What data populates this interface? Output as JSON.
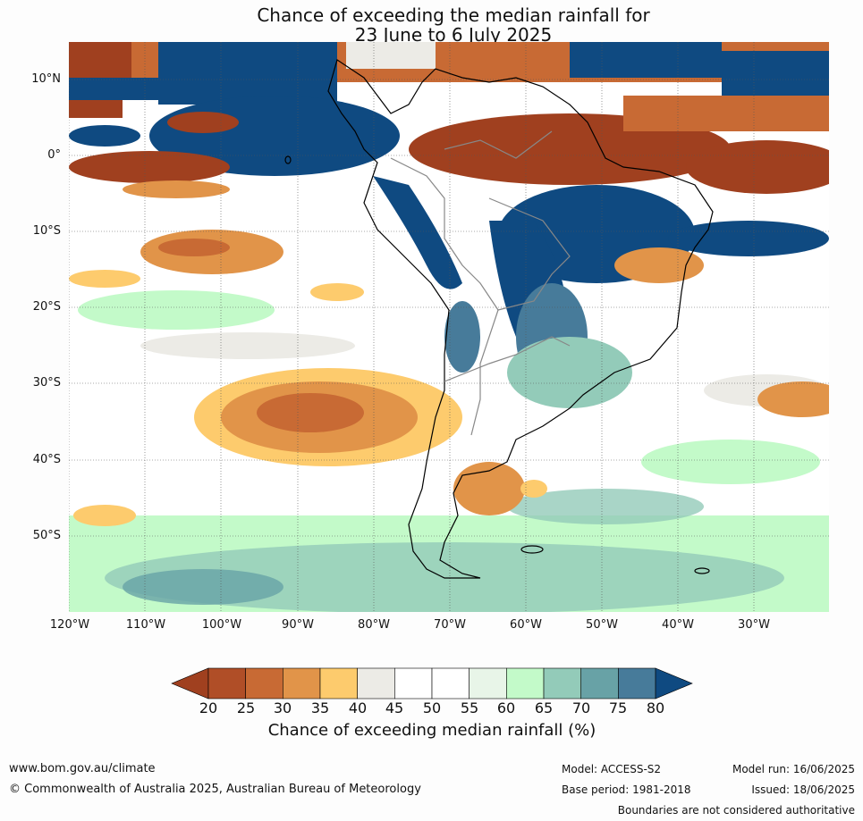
{
  "title": {
    "line1": "Chance of exceeding the median rainfall for",
    "line2": "23 June to 6 July 2025"
  },
  "map": {
    "lat_labels": [
      "10°N",
      "0°",
      "10°S",
      "20°S",
      "30°S",
      "40°S",
      "50°S"
    ],
    "lon_labels": [
      "120°W",
      "110°W",
      "100°W",
      "90°W",
      "80°W",
      "70°W",
      "60°W",
      "50°W",
      "40°W",
      "30°W"
    ]
  },
  "colorbar": {
    "ticks": [
      "20",
      "25",
      "30",
      "35",
      "40",
      "45",
      "50",
      "55",
      "60",
      "65",
      "70",
      "75",
      "80"
    ],
    "colors": [
      "#a0401f",
      "#b04e27",
      "#c86a34",
      "#e19449",
      "#fdcb6d",
      "#ecebe6",
      "#ffffff",
      "#ffffff",
      "#e8f5e8",
      "#c3fac9",
      "#93cbb9",
      "#68a2a6",
      "#477b9a",
      "#0f4a81"
    ],
    "label": "Chance of exceeding median rainfall (%)"
  },
  "footer": {
    "website": "www.bom.gov.au/climate",
    "copyright": "© Commonwealth of Australia 2025, Australian Bureau of Meteorology",
    "model": "Model: ACCESS-S2",
    "base_period": "Base period: 1981-2018",
    "model_run": "Model run: 16/06/2025",
    "issued": "Issued: 18/06/2025",
    "disclaimer": "Boundaries are not considered authoritative"
  }
}
